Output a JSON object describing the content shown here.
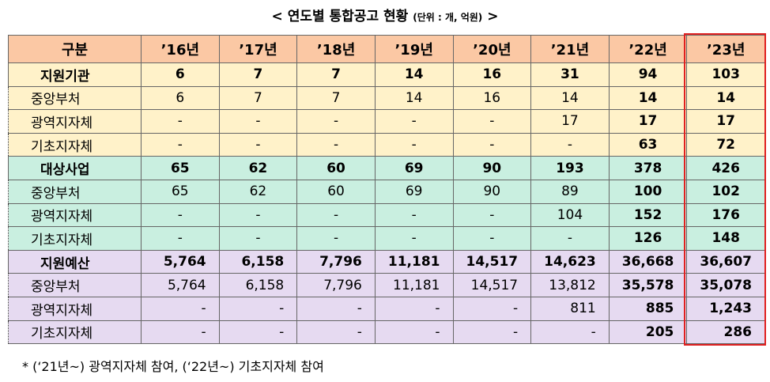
{
  "title": {
    "text": "< 연도별 통합공고 현황",
    "unit": "(단위 : 개, 억원)",
    "end": ">"
  },
  "table": {
    "header": [
      "구분",
      "’16년",
      "’17년",
      "’18년",
      "’19년",
      "’20년",
      "’21년",
      "’22년",
      "’23년"
    ],
    "groups": [
      {
        "rows": [
          {
            "label": "지원기관",
            "values": [
              "6",
              "7",
              "7",
              "14",
              "16",
              "31",
              "94",
              "103"
            ]
          },
          {
            "label": "중앙부처",
            "values": [
              "6",
              "7",
              "7",
              "14",
              "16",
              "14",
              "14",
              "14"
            ]
          },
          {
            "label": "광역지자체",
            "values": [
              "-",
              "-",
              "-",
              "-",
              "-",
              "17",
              "17",
              "17"
            ]
          },
          {
            "label": "기초지자체",
            "values": [
              "-",
              "-",
              "-",
              "-",
              "-",
              "-",
              "63",
              "72"
            ]
          }
        ]
      },
      {
        "rows": [
          {
            "label": "대상사업",
            "values": [
              "65",
              "62",
              "60",
              "69",
              "90",
              "193",
              "378",
              "426"
            ]
          },
          {
            "label": "중앙부처",
            "values": [
              "65",
              "62",
              "60",
              "69",
              "90",
              "89",
              "100",
              "102"
            ]
          },
          {
            "label": "광역지자체",
            "values": [
              "-",
              "-",
              "-",
              "-",
              "-",
              "104",
              "152",
              "176"
            ]
          },
          {
            "label": "기초지자체",
            "values": [
              "-",
              "-",
              "-",
              "-",
              "-",
              "-",
              "126",
              "148"
            ]
          }
        ]
      },
      {
        "rows": [
          {
            "label": "지원예산",
            "values": [
              "5,764",
              "6,158",
              "7,796",
              "11,181",
              "14,517",
              "14,623",
              "36,668",
              "36,607"
            ]
          },
          {
            "label": "중앙부처",
            "values": [
              "5,764",
              "6,158",
              "7,796",
              "11,181",
              "14,517",
              "13,812",
              "35,578",
              "35,078"
            ]
          },
          {
            "label": "광역지자체",
            "values": [
              "-",
              "-",
              "-",
              "-",
              "-",
              "811",
              "885",
              "1,243"
            ]
          },
          {
            "label": "기초지자체",
            "values": [
              "-",
              "-",
              "-",
              "-",
              "-",
              "-",
              "205",
              "286"
            ]
          }
        ]
      }
    ]
  },
  "footnote": "* (‘21년~) 광역지자체 참여, (‘22년~) 기초지자체 참여"
}
